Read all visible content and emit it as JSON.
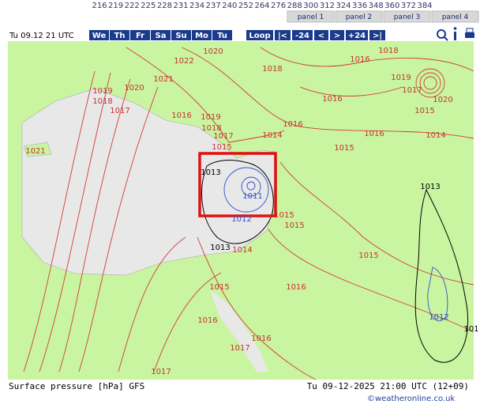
{
  "header": {
    "hours": [
      "216",
      "219",
      "222",
      "225",
      "228",
      "231",
      "234",
      "237",
      "240",
      "252",
      "264",
      "276",
      "288",
      "300",
      "312",
      "324",
      "336",
      "348",
      "360",
      "372",
      "384"
    ],
    "panels": [
      "panel 1",
      "panel 2",
      "panel 3",
      "panel 4"
    ],
    "valid_time": "Tu 09.12 21 UTC",
    "days": [
      "We",
      "Th",
      "Fr",
      "Sa",
      "Su",
      "Mo",
      "Tu"
    ],
    "controls": [
      "Loop",
      "|<",
      "-24",
      "<",
      ">",
      "+24",
      ">|"
    ]
  },
  "map": {
    "isobar_labels": [
      {
        "text": "1020",
        "color": "#c83232"
      },
      {
        "text": "1022",
        "color": "#c83232"
      },
      {
        "text": "1021",
        "color": "#c83232"
      },
      {
        "text": "1020",
        "color": "#c83232"
      },
      {
        "text": "1019",
        "color": "#c83232"
      },
      {
        "text": "1018",
        "color": "#c83232"
      },
      {
        "text": "1017",
        "color": "#c83232"
      },
      {
        "text": "1016",
        "color": "#c83232"
      },
      {
        "text": "1019",
        "color": "#c83232"
      },
      {
        "text": "1018",
        "color": "#c83232"
      },
      {
        "text": "1017",
        "color": "#c83232"
      },
      {
        "text": "1015",
        "color": "#c83232"
      },
      {
        "text": "1014",
        "color": "#c83232"
      },
      {
        "text": "1016",
        "color": "#c83232"
      },
      {
        "text": "1015",
        "color": "#c83232"
      },
      {
        "text": "1016",
        "color": "#c83232"
      },
      {
        "text": "1014",
        "color": "#c83232"
      },
      {
        "text": "1018",
        "color": "#c83232"
      },
      {
        "text": "1016",
        "color": "#c83232"
      },
      {
        "text": "1018",
        "color": "#c83232"
      },
      {
        "text": "1016",
        "color": "#c83232"
      },
      {
        "text": "1019",
        "color": "#c83232"
      },
      {
        "text": "1017",
        "color": "#c83232"
      },
      {
        "text": "1020",
        "color": "#c83232"
      },
      {
        "text": "1015",
        "color": "#c83232"
      },
      {
        "text": "1021",
        "color": "#c83232"
      },
      {
        "text": "1013",
        "color": "#000000"
      },
      {
        "text": "1011",
        "color": "#3050d0"
      },
      {
        "text": "1012",
        "color": "#3050d0"
      },
      {
        "text": "1015",
        "color": "#c83232"
      },
      {
        "text": "1015",
        "color": "#c83232"
      },
      {
        "text": "1013",
        "color": "#000000"
      },
      {
        "text": "1014",
        "color": "#c83232"
      },
      {
        "text": "1015",
        "color": "#c83232"
      },
      {
        "text": "1015",
        "color": "#c83232"
      },
      {
        "text": "1016",
        "color": "#c83232"
      },
      {
        "text": "1016",
        "color": "#c83232"
      },
      {
        "text": "1016",
        "color": "#c83232"
      },
      {
        "text": "1017",
        "color": "#c83232"
      },
      {
        "text": "1017",
        "color": "#c83232"
      },
      {
        "text": "1013",
        "color": "#000000"
      },
      {
        "text": "1012",
        "color": "#3050d0"
      },
      {
        "text": "101",
        "color": "#000000"
      }
    ]
  },
  "footer": {
    "caption": "Surface pressure [hPa] GFS",
    "timestamp": "Tu 09-12-2025 21:00 UTC (12+09)",
    "credit": "©weatheronline.co.uk"
  }
}
